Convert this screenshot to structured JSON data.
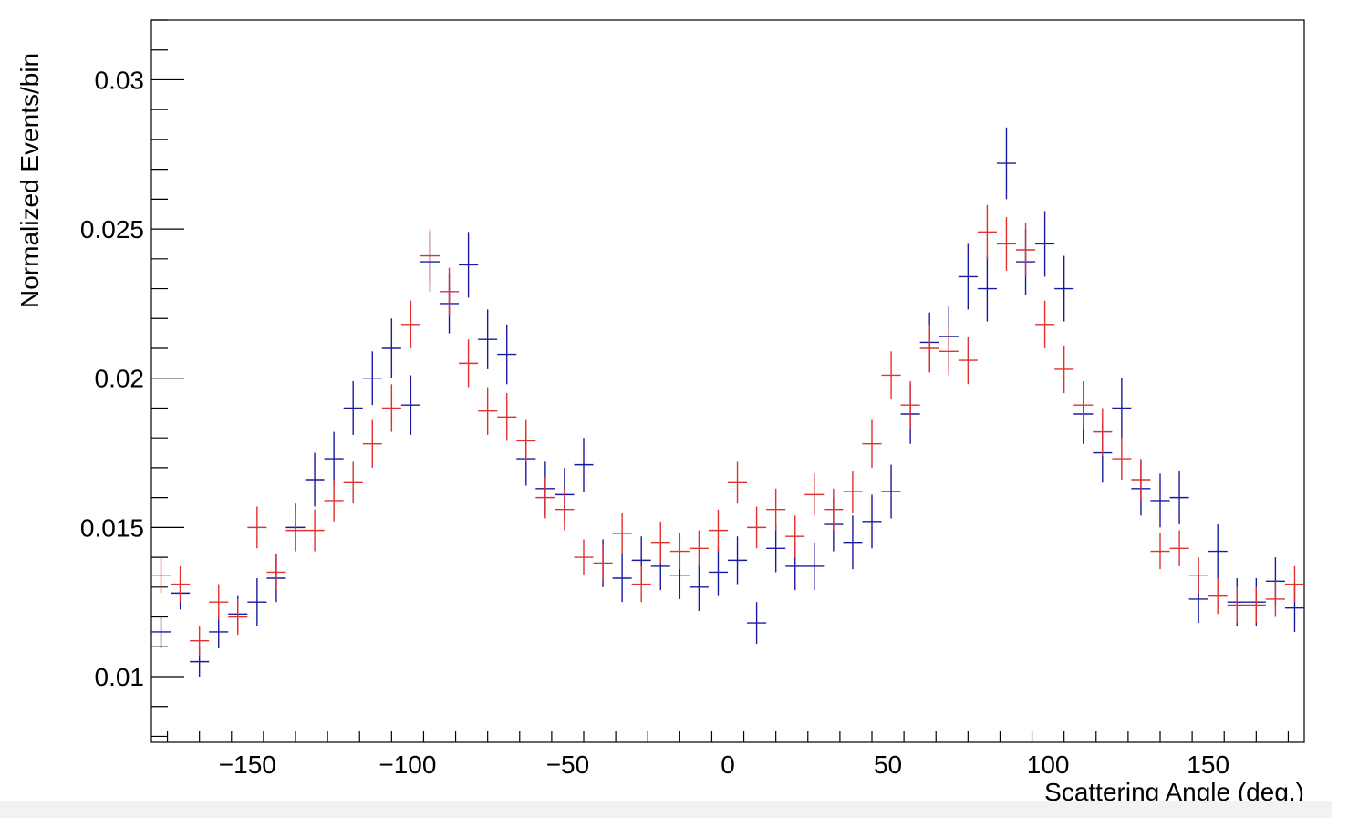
{
  "chart_data": {
    "type": "scatter",
    "title": "",
    "xlabel": "Scattering Angle (deg.)",
    "ylabel": "Normalized Events/bin",
    "xlim": [
      -180,
      180
    ],
    "ylim": [
      0.0078,
      0.032
    ],
    "grid": false,
    "legend": "none",
    "x_ticks": [
      -150,
      -100,
      -50,
      0,
      50,
      100,
      150
    ],
    "x_tick_labels": [
      "−150",
      "−100",
      "−50",
      "0",
      "50",
      "100",
      "150"
    ],
    "y_ticks": [
      0.01,
      0.015,
      0.02,
      0.025,
      0.03
    ],
    "y_tick_labels": [
      "0.01",
      "0.015",
      "0.02",
      "0.025",
      "0.03"
    ],
    "bin_width": 6,
    "x": [
      -177,
      -171,
      -165,
      -159,
      -153,
      -147,
      -141,
      -135,
      -129,
      -123,
      -117,
      -111,
      -105,
      -99,
      -93,
      -87,
      -81,
      -75,
      -69,
      -63,
      -57,
      -51,
      -45,
      -39,
      -33,
      -27,
      -21,
      -15,
      -9,
      -3,
      3,
      9,
      15,
      21,
      27,
      33,
      39,
      45,
      51,
      57,
      63,
      69,
      75,
      81,
      87,
      93,
      99,
      105,
      111,
      117,
      123,
      129,
      135,
      141,
      147,
      153,
      159,
      165,
      171,
      177
    ],
    "series": [
      {
        "color": "#1a1aa0",
        "values": [
          0.0115,
          0.0128,
          0.0105,
          0.0115,
          0.0121,
          0.0125,
          0.0133,
          0.015,
          0.0166,
          0.0173,
          0.019,
          0.02,
          0.021,
          0.0191,
          0.0239,
          0.0225,
          0.0238,
          0.0213,
          0.0208,
          0.0173,
          0.0163,
          0.0161,
          0.0171,
          0.0138,
          0.0133,
          0.0139,
          0.0137,
          0.0134,
          0.013,
          0.0135,
          0.0139,
          0.0118,
          0.0143,
          0.0137,
          0.0137,
          0.0151,
          0.0145,
          0.0152,
          0.0162,
          0.0188,
          0.0212,
          0.0214,
          0.0234,
          0.023,
          0.0272,
          0.0239,
          0.0245,
          0.023,
          0.0188,
          0.0175,
          0.019,
          0.0163,
          0.0159,
          0.016,
          0.0126,
          0.0142,
          0.0125,
          0.0125,
          0.0132,
          0.0123
        ],
        "errors": [
          0.00055,
          0.00055,
          0.0005,
          0.00055,
          0.0006,
          0.0008,
          0.0008,
          0.0008,
          0.0009,
          0.0009,
          0.0009,
          0.0009,
          0.001,
          0.001,
          0.001,
          0.001,
          0.0011,
          0.001,
          0.001,
          0.0009,
          0.0009,
          0.0009,
          0.0009,
          0.0008,
          0.0008,
          0.0008,
          0.0008,
          0.0008,
          0.0008,
          0.0008,
          0.0008,
          0.0007,
          0.0008,
          0.0008,
          0.0008,
          0.0009,
          0.0009,
          0.0009,
          0.0009,
          0.001,
          0.001,
          0.001,
          0.0011,
          0.0011,
          0.0012,
          0.0011,
          0.0011,
          0.0011,
          0.001,
          0.001,
          0.001,
          0.0009,
          0.0009,
          0.0009,
          0.0008,
          0.0009,
          0.0008,
          0.0008,
          0.0008,
          0.0008
        ]
      },
      {
        "color": "#e03030",
        "values": [
          0.0134,
          0.0131,
          0.0112,
          0.0125,
          0.012,
          0.015,
          0.0135,
          0.0149,
          0.0149,
          0.0159,
          0.0165,
          0.0178,
          0.019,
          0.0218,
          0.0241,
          0.0229,
          0.0205,
          0.0189,
          0.0187,
          0.0179,
          0.016,
          0.0156,
          0.014,
          0.0138,
          0.0148,
          0.0131,
          0.0145,
          0.0142,
          0.0143,
          0.0149,
          0.0165,
          0.015,
          0.0156,
          0.0147,
          0.0161,
          0.0156,
          0.0162,
          0.0178,
          0.0201,
          0.0191,
          0.021,
          0.0209,
          0.0206,
          0.0249,
          0.0245,
          0.0243,
          0.0218,
          0.0203,
          0.0191,
          0.0182,
          0.0173,
          0.0166,
          0.0142,
          0.0143,
          0.0134,
          0.0127,
          0.0124,
          0.0124,
          0.0126,
          0.0131
        ],
        "errors": [
          0.0006,
          0.0006,
          0.0005,
          0.0006,
          0.0006,
          0.0007,
          0.0006,
          0.0007,
          0.0007,
          0.0007,
          0.0007,
          0.0008,
          0.0008,
          0.0008,
          0.0009,
          0.0008,
          0.0008,
          0.0008,
          0.0008,
          0.0007,
          0.0007,
          0.0007,
          0.0006,
          0.0006,
          0.0007,
          0.0006,
          0.0007,
          0.0006,
          0.0006,
          0.0007,
          0.0007,
          0.0007,
          0.0007,
          0.0007,
          0.0007,
          0.0007,
          0.0007,
          0.0008,
          0.0008,
          0.0008,
          0.0008,
          0.0008,
          0.0008,
          0.0009,
          0.0009,
          0.0009,
          0.0008,
          0.0008,
          0.0008,
          0.0008,
          0.0007,
          0.0007,
          0.0006,
          0.0006,
          0.0006,
          0.0006,
          0.0006,
          0.0006,
          0.0006,
          0.0006
        ]
      }
    ]
  }
}
